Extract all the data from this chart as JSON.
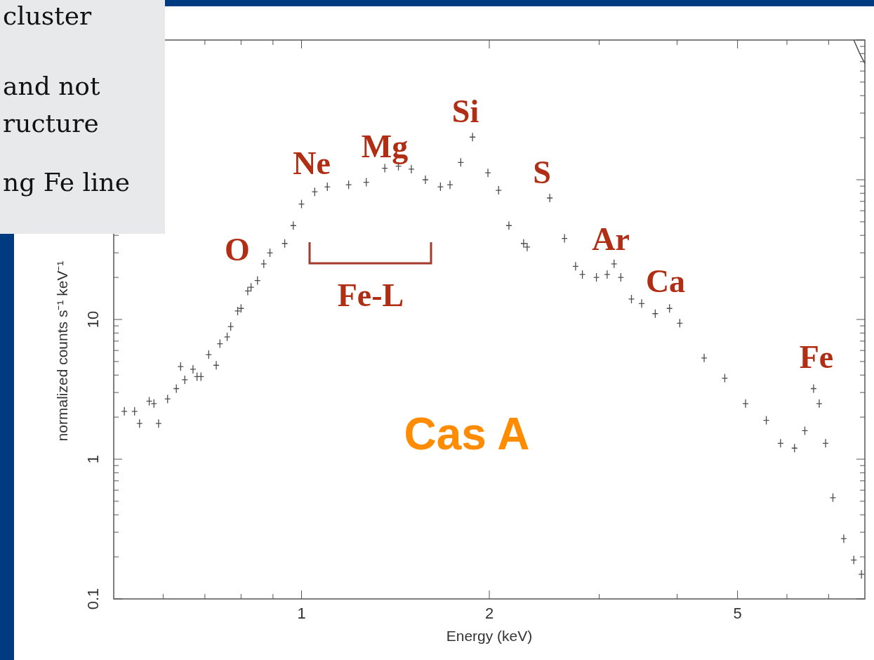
{
  "chart_data": {
    "type": "scatter",
    "xlabel": "Energy (keV)",
    "ylabel": "normalized counts s⁻¹ keV⁻¹",
    "log": "xy",
    "xlim": [
      0.5,
      8
    ],
    "ylim": [
      0.1,
      1000
    ],
    "xticks": [
      {
        "value": 0.6,
        "label": null
      },
      {
        "value": 0.7,
        "label": null
      },
      {
        "value": 0.8,
        "label": null
      },
      {
        "value": 0.9,
        "label": null
      },
      1,
      2,
      {
        "value": 3,
        "label": null
      },
      {
        "value": 4,
        "label": null
      },
      5,
      {
        "value": 6,
        "label": null
      },
      {
        "value": 7,
        "label": null
      }
    ],
    "yticks": [
      0.1,
      {
        "value": 0.2,
        "label": null
      },
      {
        "value": 0.3,
        "label": null
      },
      {
        "value": 0.4,
        "label": null
      },
      {
        "value": 0.5,
        "label": null
      },
      {
        "value": 0.6,
        "label": null
      },
      {
        "value": 0.7,
        "label": null
      },
      {
        "value": 0.8,
        "label": null
      },
      {
        "value": 0.9,
        "label": null
      },
      1,
      {
        "value": 2,
        "label": null
      },
      {
        "value": 3,
        "label": null
      },
      {
        "value": 4,
        "label": null
      },
      {
        "value": 5,
        "label": null
      },
      {
        "value": 6,
        "label": null
      },
      {
        "value": 7,
        "label": null
      },
      {
        "value": 8,
        "label": null
      },
      {
        "value": 9,
        "label": null
      },
      10,
      {
        "value": 20,
        "label": null
      },
      {
        "value": 30,
        "label": null
      },
      {
        "value": 40,
        "label": null
      },
      {
        "value": 50,
        "label": null
      },
      {
        "value": 60,
        "label": null
      },
      {
        "value": 70,
        "label": null
      },
      {
        "value": 80,
        "label": null
      },
      {
        "value": 90,
        "label": null
      },
      {
        "value": 100,
        "label": null
      },
      {
        "value": 200,
        "label": null
      },
      {
        "value": 300,
        "label": null
      },
      {
        "value": 400,
        "label": null
      },
      {
        "value": 500,
        "label": null
      },
      {
        "value": 600,
        "label": null
      },
      {
        "value": 700,
        "label": null
      },
      {
        "value": 800,
        "label": null
      },
      {
        "value": 900,
        "label": null
      },
      {
        "value": 1000,
        "label": null
      }
    ],
    "series": [
      {
        "marker": "cross",
        "color": "#4d4d4d",
        "x": [
          0.52,
          0.54,
          0.55,
          0.57,
          0.58,
          0.59,
          0.61,
          0.63,
          0.64,
          0.65,
          0.67,
          0.68,
          0.69,
          0.71,
          0.73,
          0.74,
          0.76,
          0.77,
          0.79,
          0.8,
          0.82,
          0.83,
          0.85,
          0.87,
          0.89,
          0.94,
          0.97,
          1.0,
          1.05,
          1.1,
          1.19,
          1.27,
          1.36,
          1.43,
          1.5,
          1.58,
          1.67,
          1.73,
          1.8,
          1.88,
          1.99,
          2.07,
          2.15,
          2.27,
          2.3,
          2.5,
          2.64,
          2.75,
          2.82,
          2.97,
          3.09,
          3.17,
          3.25,
          3.38,
          3.51,
          3.69,
          3.89,
          4.04,
          4.42,
          4.77,
          5.15,
          5.56,
          5.86,
          6.17,
          6.41,
          6.62,
          6.76,
          6.92,
          7.11,
          7.4,
          7.68,
          7.9
        ],
        "values": [
          2.2,
          2.2,
          1.8,
          2.6,
          2.5,
          1.8,
          2.7,
          3.2,
          4.6,
          3.7,
          4.4,
          3.9,
          3.9,
          5.6,
          4.7,
          6.7,
          7.5,
          8.9,
          11.5,
          12,
          16,
          17,
          19,
          25,
          30,
          35,
          47,
          67,
          82,
          89,
          92,
          96,
          121,
          125,
          119,
          100,
          89,
          92,
          133,
          202,
          112,
          84,
          47,
          35,
          33,
          74,
          38,
          24,
          21,
          20,
          21,
          25,
          20,
          14,
          13,
          11,
          12,
          9.4,
          5.3,
          3.8,
          2.5,
          1.9,
          1.3,
          1.2,
          1.6,
          3.2,
          2.5,
          1.3,
          0.53,
          0.27,
          0.19,
          0.15
        ]
      },
      {
        "type": "line",
        "color": "#4d4d4d",
        "x": [
          7.68,
          7.85,
          8.0
        ],
        "values": [
          1000,
          800,
          680
        ]
      }
    ],
    "annotations": [
      "O",
      "Ne",
      "Mg",
      "Si",
      "S",
      "Ar",
      "Ca",
      "Fe-L",
      "Fe",
      "Cas A",
      "cluster",
      "and not",
      "ructure",
      "ng Fe line"
    ]
  }
}
